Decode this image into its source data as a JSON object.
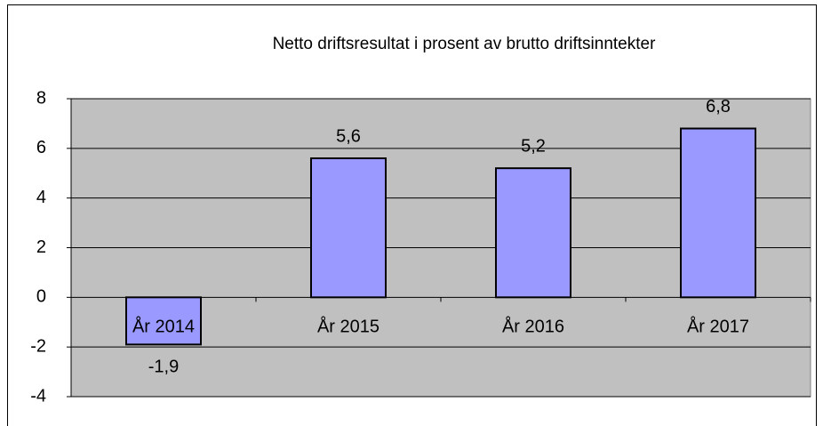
{
  "chart_data": {
    "type": "bar",
    "title": "Netto driftsresultat i prosent av brutto driftsinntekter",
    "categories": [
      "År 2014",
      "År 2015",
      "År 2016",
      "År 2017"
    ],
    "values": [
      -1.9,
      5.6,
      5.2,
      6.8
    ],
    "value_labels": [
      "-1,9",
      "5,6",
      "5,2",
      "6,8"
    ],
    "color": "#9999ff",
    "ylim": [
      -4,
      8
    ],
    "yticks": [
      -4,
      -2,
      0,
      2,
      4,
      6,
      8
    ],
    "grid": true
  }
}
